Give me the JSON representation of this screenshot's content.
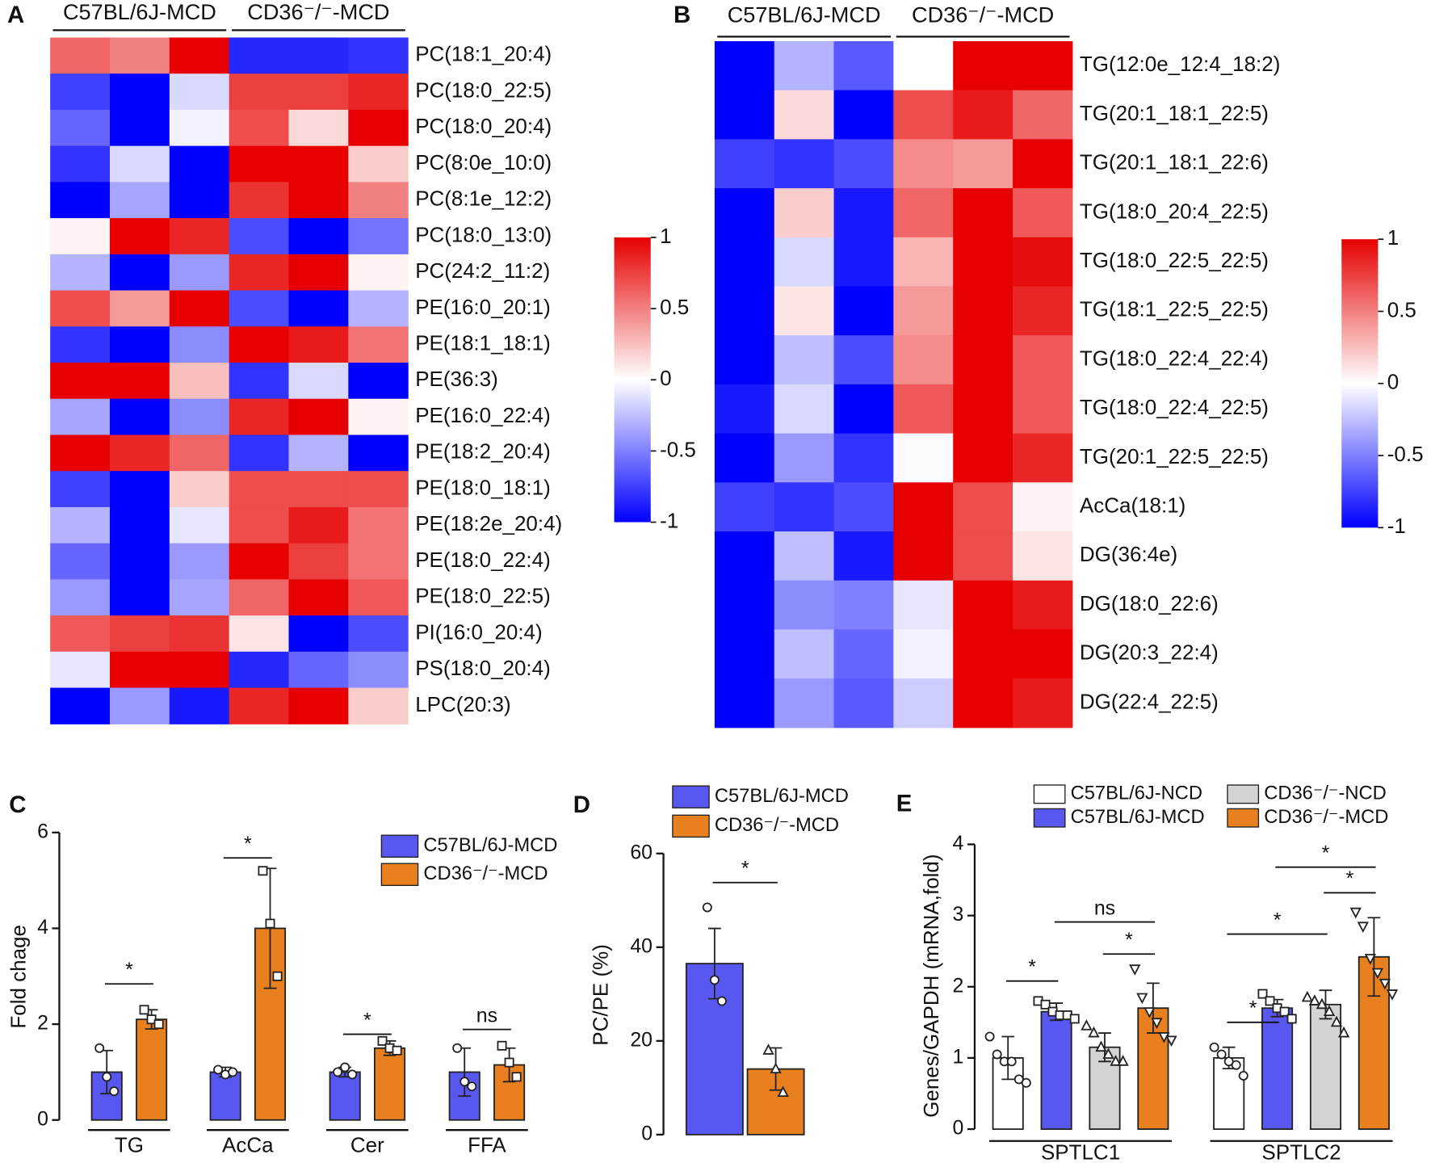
{
  "chart_data": [
    {
      "type": "heatmap",
      "panel": "A",
      "groups": [
        "C57BL/6J-MCD",
        "CD36⁻/⁻-MCD"
      ],
      "rows": [
        "PC(18:1_20:4)",
        "PC(18:0_22:5)",
        "PC(18:0_20:4)",
        "PC(8:0e_10:0)",
        "PC(8:1e_12:2)",
        "PC(18:0_13:0)",
        "PC(24:2_11:2)",
        "PE(16:0_20:1)",
        "PE(18:1_18:1)",
        "PE(36:3)",
        "PE(16:0_22:4)",
        "PE(18:2_20:4)",
        "PE(18:0_18:1)",
        "PE(18:2e_20:4)",
        "PE(18:0_22:4)",
        "PE(18:0_22:5)",
        "PI(16:0_20:4)",
        "PS(18:0_20:4)",
        "LPC(20:3)"
      ],
      "values": [
        [
          0.6,
          0.5,
          1,
          -0.85,
          -0.85,
          -0.8
        ],
        [
          -0.75,
          -1,
          -0.15,
          0.75,
          0.75,
          0.85
        ],
        [
          -0.6,
          -1,
          -0.05,
          0.7,
          0.15,
          1
        ],
        [
          -0.8,
          -0.15,
          -1,
          1,
          1,
          0.2
        ],
        [
          -1,
          -0.35,
          -1,
          0.8,
          1,
          0.5
        ],
        [
          0.05,
          1,
          0.85,
          -0.7,
          -1,
          -0.55
        ],
        [
          -0.3,
          -1,
          -0.4,
          0.85,
          1,
          0.05
        ],
        [
          0.7,
          0.4,
          1,
          -0.7,
          -1,
          -0.3
        ],
        [
          -0.8,
          -1,
          -0.45,
          1,
          0.9,
          0.55
        ],
        [
          1,
          1,
          0.25,
          -0.8,
          -0.15,
          -1
        ],
        [
          -0.35,
          -1,
          -0.45,
          0.85,
          1,
          0.05
        ],
        [
          1,
          0.85,
          0.6,
          -0.8,
          -0.3,
          -1
        ],
        [
          -0.75,
          -1,
          0.2,
          0.7,
          0.7,
          0.7
        ],
        [
          -0.3,
          -1,
          -0.1,
          0.7,
          0.9,
          0.55
        ],
        [
          -0.6,
          -1,
          -0.4,
          1,
          0.75,
          0.55
        ],
        [
          -0.4,
          -1,
          -0.35,
          0.6,
          1,
          0.65
        ],
        [
          0.65,
          0.75,
          0.8,
          0.1,
          -1,
          -0.7
        ],
        [
          -0.1,
          1,
          1,
          -0.85,
          -0.6,
          -0.45
        ],
        [
          -1,
          -0.4,
          -0.9,
          0.85,
          1,
          0.2
        ]
      ],
      "colorscale": [
        "#0000ff",
        "#ffffff",
        "#e60000"
      ],
      "zlim": [
        -1,
        1
      ],
      "zticks": [
        -1,
        -0.5,
        0,
        0.5,
        1
      ]
    },
    {
      "type": "heatmap",
      "panel": "B",
      "groups": [
        "C57BL/6J-MCD",
        "CD36⁻/⁻-MCD"
      ],
      "rows": [
        "TG(12:0e_12:4_18:2)",
        "TG(20:1_18:1_22:5)",
        "TG(20:1_18:1_22:6)",
        "TG(18:0_20:4_22:5)",
        "TG(18:0_22:5_22:5)",
        "TG(18:1_22:5_22:5)",
        "TG(18:0_22:4_22:4)",
        "TG(18:0_22:4_22:5)",
        "TG(20:1_22:5_22:5)",
        "AcCa(18:1)",
        "DG(36:4e)",
        "DG(18:0_22:6)",
        "DG(20:3_22:4)",
        "DG(22:4_22:5)"
      ],
      "values": [
        [
          -1,
          -0.3,
          -0.65,
          0,
          1,
          1
        ],
        [
          -1,
          0.15,
          -1,
          0.7,
          0.9,
          0.6
        ],
        [
          -0.75,
          -0.8,
          -0.7,
          0.45,
          0.4,
          1
        ],
        [
          -1,
          0.2,
          -0.9,
          0.6,
          1,
          0.65
        ],
        [
          -1,
          -0.15,
          -0.9,
          0.3,
          1,
          0.95
        ],
        [
          -1,
          0.1,
          -1,
          0.4,
          1,
          0.85
        ],
        [
          -1,
          -0.25,
          -0.7,
          0.45,
          1,
          0.65
        ],
        [
          -0.9,
          -0.15,
          -1,
          0.65,
          1,
          0.65
        ],
        [
          -1,
          -0.4,
          -0.8,
          -0.02,
          1,
          0.85
        ],
        [
          -0.75,
          -0.8,
          -0.7,
          1,
          0.7,
          0.05
        ],
        [
          -1,
          -0.25,
          -0.9,
          1,
          0.7,
          0.1
        ],
        [
          -1,
          -0.45,
          -0.5,
          -0.1,
          1,
          0.9
        ],
        [
          -1,
          -0.25,
          -0.6,
          -0.05,
          1,
          1
        ],
        [
          -1,
          -0.4,
          -0.65,
          -0.2,
          1,
          0.9
        ]
      ],
      "colorscale": [
        "#0000ff",
        "#ffffff",
        "#e60000"
      ],
      "zlim": [
        -1,
        1
      ],
      "zticks": [
        -1,
        -0.5,
        0,
        0.5,
        1
      ]
    },
    {
      "type": "bar",
      "panel": "C",
      "ylabel": "Fold chage",
      "categories": [
        "TG",
        "AcCa",
        "Cer",
        "FFA"
      ],
      "series": [
        {
          "name": "C57BL/6J-MCD",
          "color": "#5858f0",
          "marker": "circle",
          "values": [
            1.0,
            1.0,
            1.0,
            1.0
          ],
          "errors": [
            0.45,
            0.1,
            0.1,
            0.5
          ],
          "points": [
            [
              1.5,
              0.9,
              0.6
            ],
            [
              1.05,
              0.95,
              1.0
            ],
            [
              1.0,
              1.1,
              0.95
            ],
            [
              1.5,
              0.8,
              0.7
            ]
          ]
        },
        {
          "name": "CD36⁻/⁻-MCD",
          "color": "#e8801f",
          "marker": "square",
          "values": [
            2.1,
            4.0,
            1.5,
            1.15
          ],
          "errors": [
            0.2,
            1.25,
            0.15,
            0.35
          ],
          "points": [
            [
              2.3,
              2.1,
              2.0
            ],
            [
              5.2,
              4.1,
              3.0
            ],
            [
              1.65,
              1.5,
              1.45
            ],
            [
              1.55,
              1.2,
              0.9
            ]
          ]
        }
      ],
      "ylim": [
        0,
        6
      ],
      "yticks": [
        0,
        2,
        4,
        6
      ],
      "annotations": [
        "*",
        "*",
        "*",
        "ns"
      ]
    },
    {
      "type": "bar",
      "panel": "D",
      "ylabel": "PC/PE (%)",
      "categories": [
        null
      ],
      "series": [
        {
          "name": "C57BL/6J-MCD",
          "color": "#5858f0",
          "marker": "circle",
          "values": [
            36.5
          ],
          "errors": [
            7.5
          ],
          "points": [
            [
              48.5,
              33,
              28.5
            ]
          ]
        },
        {
          "name": "CD36⁻/⁻-MCD",
          "color": "#e8801f",
          "marker": "triangle",
          "values": [
            14
          ],
          "errors": [
            4.5
          ],
          "points": [
            [
              18,
              14,
              9
            ]
          ]
        }
      ],
      "ylim": [
        0,
        60
      ],
      "yticks": [
        0,
        20,
        40,
        60
      ],
      "annotations": [
        "*"
      ]
    },
    {
      "type": "bar",
      "panel": "E",
      "ylabel": "Genes/GAPDH (mRNA,fold)",
      "categories": [
        "SPTLC1",
        "SPTLC2"
      ],
      "series": [
        {
          "name": "C57BL/6J-NCD",
          "color": "#ffffff",
          "marker": "circle",
          "values": [
            1.0,
            1.0
          ],
          "errors": [
            0.3,
            0.15
          ],
          "points": [
            [
              1.3,
              1.05,
              0.95,
              0.95,
              0.7,
              0.65
            ],
            [
              1.15,
              1.05,
              0.95,
              0.9,
              0.75
            ]
          ]
        },
        {
          "name": "C57BL/6J-MCD",
          "color": "#5858f0",
          "marker": "square",
          "values": [
            1.65,
            1.7
          ],
          "errors": [
            0.12,
            0.12
          ],
          "points": [
            [
              1.8,
              1.75,
              1.65,
              1.6,
              1.6,
              1.55
            ],
            [
              1.9,
              1.8,
              1.7,
              1.65,
              1.55
            ]
          ]
        },
        {
          "name": "CD36⁻/⁻-NCD",
          "color": "#d4d4d4",
          "marker": "triangle",
          "values": [
            1.15,
            1.75
          ],
          "errors": [
            0.2,
            0.2
          ],
          "points": [
            [
              1.45,
              1.35,
              1.15,
              1.05,
              0.95,
              0.95
            ],
            [
              1.85,
              1.8,
              1.75,
              1.65,
              1.5,
              1.35
            ]
          ]
        },
        {
          "name": "CD36⁻/⁻-MCD",
          "color": "#e8801f",
          "marker": "down-triangle",
          "values": [
            1.7,
            2.42
          ],
          "errors": [
            0.35,
            0.55
          ],
          "points": [
            [
              2.25,
              1.85,
              1.65,
              1.5,
              1.3,
              1.25
            ],
            [
              3.05,
              2.85,
              2.4,
              2.2,
              2.05,
              1.9
            ]
          ]
        }
      ],
      "ylim": [
        0,
        4
      ],
      "yticks": [
        0,
        1,
        2,
        3,
        4
      ],
      "annotations": [
        "*",
        "ns",
        "*",
        "*",
        "*",
        "*",
        "*"
      ]
    }
  ]
}
